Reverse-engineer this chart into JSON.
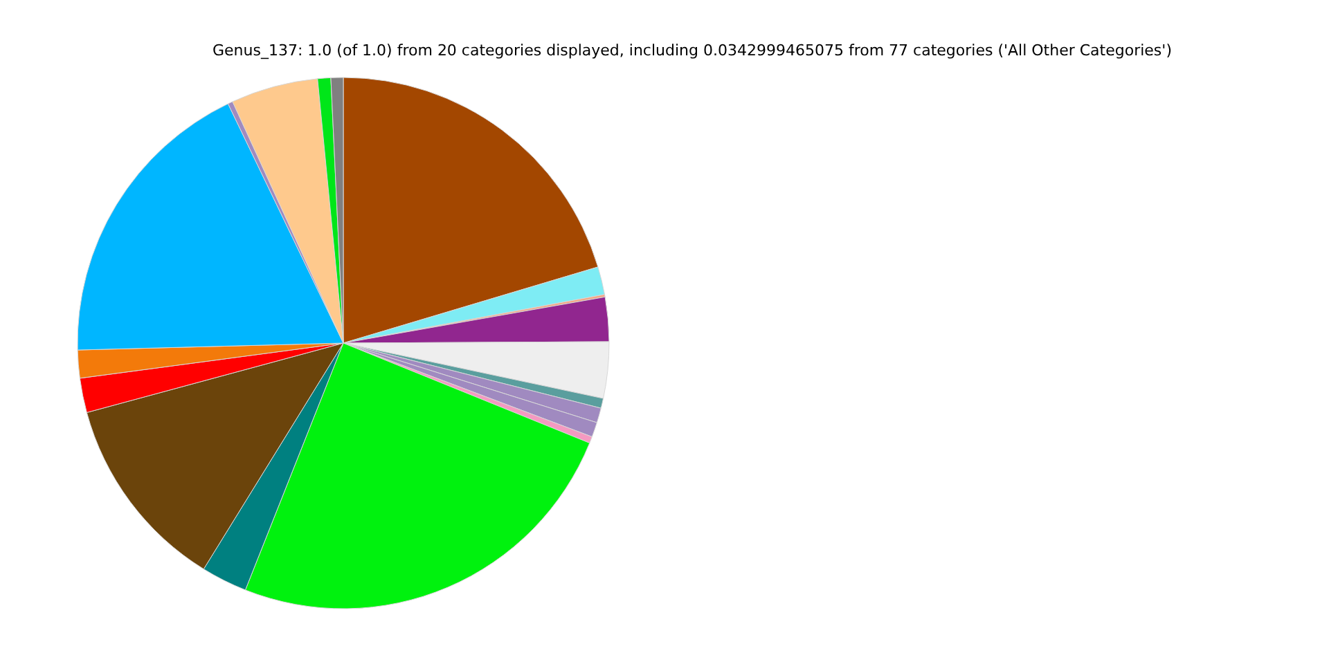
{
  "chart_data": {
    "type": "pie",
    "title": "Genus_137: 1.0 (of 1.0) from 20 categories displayed, including 0.0342999465075 from 77 categories ('All Other Categories')",
    "categories": [
      null,
      null,
      null,
      null,
      null,
      null,
      null,
      null,
      null,
      null,
      null,
      null,
      null,
      null,
      null,
      null,
      null,
      null,
      null
    ],
    "values": [
      20.4,
      1.7,
      0.15,
      2.7,
      3.43,
      0.6,
      0.9,
      0.9,
      0.4,
      24.9,
      2.8,
      12.0,
      2.1,
      1.7,
      18.3,
      0.3,
      5.3,
      0.8,
      0.75
    ],
    "colors": [
      "#a34700",
      "#7eecf4",
      "#f4a582",
      "#91268f",
      "#eeeeee",
      "#5a9e9e",
      "#a08ac0",
      "#a08ac0",
      "#f49ac1",
      "#00f20e",
      "#008080",
      "#6b440b",
      "#ff0000",
      "#f37a0a",
      "#00b6ff",
      "#a08ac0",
      "#fec98d",
      "#00e619",
      "#808080"
    ]
  }
}
